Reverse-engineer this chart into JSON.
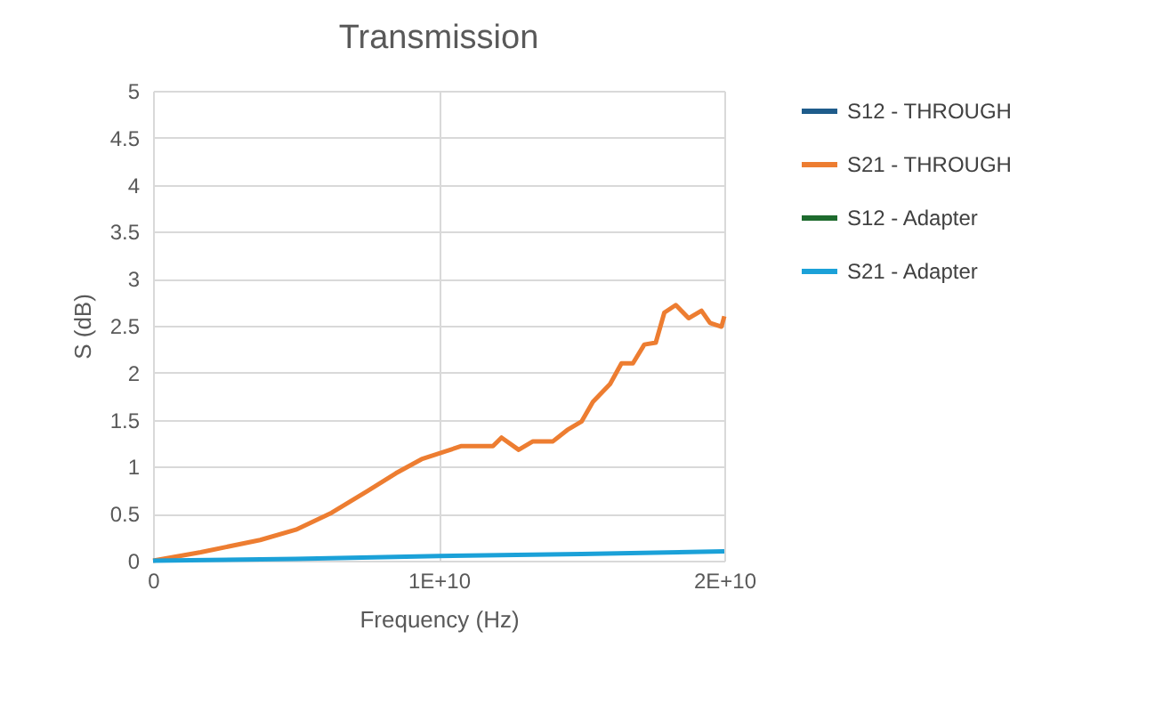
{
  "chart_data": {
    "type": "line",
    "title": "Transmission",
    "xlabel": "Frequency (Hz)",
    "ylabel": "S (dB)",
    "x": [
      0,
      1670000000,
      3750000000,
      5000000000,
      6250000000,
      7500000000,
      8500000000,
      9400000000,
      10000000000,
      10800000000,
      11900000000,
      12200000000,
      12800000000,
      13300000000,
      14000000000,
      14500000000,
      15000000000,
      15400000000,
      16000000000,
      16400000000,
      16800000000,
      17200000000,
      17600000000,
      17900000000,
      18300000000,
      18750000000,
      19200000000,
      19500000000,
      19900000000,
      20000000000
    ],
    "series": [
      {
        "name": "S12 - THROUGH",
        "color": "#1f5c8b",
        "values": [
          null,
          null,
          null,
          null,
          null,
          null,
          null,
          null,
          null,
          null,
          null,
          null,
          null,
          null,
          null,
          null,
          null,
          null,
          null,
          null,
          null,
          null,
          null,
          null,
          null,
          null,
          null,
          null,
          null,
          null
        ]
      },
      {
        "name": "S21 - THROUGH",
        "color": "#ed7d31",
        "values": [
          0,
          0.09,
          0.22,
          0.33,
          0.51,
          0.74,
          0.93,
          1.08,
          1.14,
          1.22,
          1.22,
          1.31,
          1.18,
          1.27,
          1.27,
          1.39,
          1.48,
          1.69,
          1.88,
          2.1,
          2.1,
          2.3,
          2.32,
          2.64,
          2.72,
          2.58,
          2.66,
          2.53,
          2.49,
          2.6
        ]
      },
      {
        "name": "S12 - Adapter",
        "color": "#1e6b2e",
        "values": [
          null,
          null,
          null,
          null,
          null,
          null,
          null,
          null,
          null,
          null,
          null,
          null,
          null,
          null,
          null,
          null,
          null,
          null,
          null,
          null,
          null,
          null,
          null,
          null,
          null,
          null,
          null,
          null,
          null,
          null
        ]
      },
      {
        "name": "S21 - Adapter",
        "x": [
          0,
          5000000000,
          10000000000,
          15000000000,
          20000000000
        ],
        "color": "#1ba1d8",
        "values": [
          0,
          0.02,
          0.05,
          0.07,
          0.1
        ]
      }
    ],
    "xlim": [
      0,
      20000000000
    ],
    "xticks": [
      0,
      {
        "value": 10000000000,
        "label": "1E+10"
      },
      {
        "value": 20000000000,
        "label": "2E+10"
      }
    ],
    "ylim": [
      0,
      5
    ],
    "yticks": [
      0,
      0.5,
      1,
      1.5,
      2,
      2.5,
      3,
      3.5,
      4,
      4.5,
      5
    ],
    "grid": true,
    "legend": "right",
    "line_style": "solid",
    "marker": "none"
  }
}
